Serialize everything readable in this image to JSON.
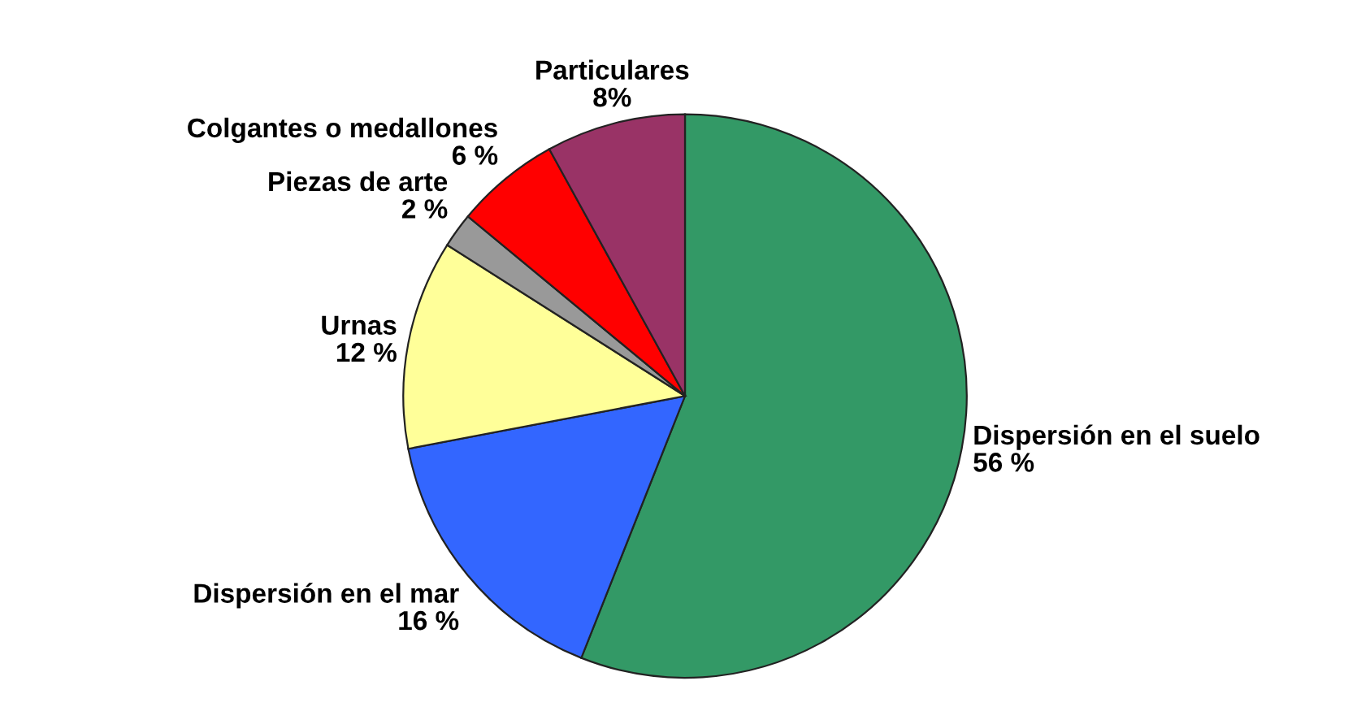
{
  "chart_data": {
    "type": "pie",
    "categories": [
      "Dispersión en el suelo",
      "Dispersión en el mar",
      "Urnas",
      "Piezas de arte",
      "Colgantes o medallones",
      "Particulares"
    ],
    "values": [
      56,
      16,
      12,
      2,
      6,
      8
    ],
    "colors": [
      "#339966",
      "#3366ff",
      "#ffff99",
      "#999999",
      "#ff0000",
      "#993366"
    ],
    "value_labels": [
      "56 %",
      "16 %",
      "12 %",
      "2 %",
      "6 %",
      "8%"
    ]
  }
}
